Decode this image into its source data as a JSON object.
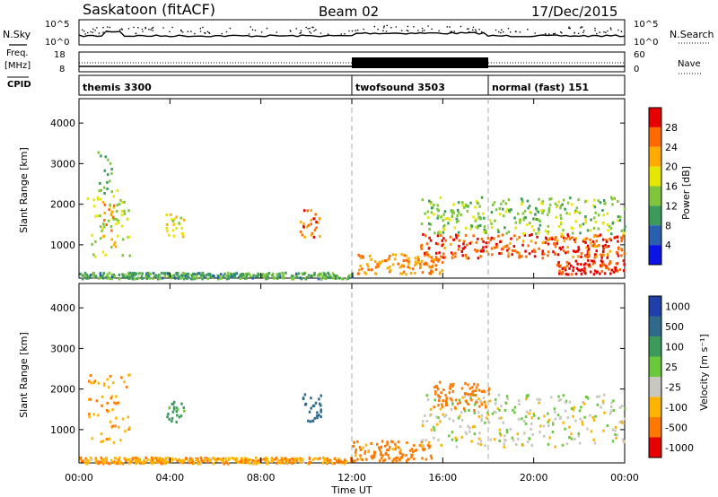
{
  "header": {
    "station": "Saskatoon (fitACF)",
    "beam": "Beam 02",
    "date": "17/Dec/2015"
  },
  "top_panels": {
    "nsky_label": "N.Sky",
    "nsearch_label": "N.Search",
    "freq_label_1": "Freq.",
    "freq_label_2": "[MHz]",
    "nave_label": "Nave",
    "cpid_label": "CPID",
    "left_ticks_noise": [
      "10^5",
      "10^0"
    ],
    "right_ticks_noise": [
      "10^5",
      "10^0"
    ],
    "left_ticks_freq": [
      "18",
      "8"
    ],
    "right_ticks_freq": [
      "60",
      "0"
    ]
  },
  "cpid_segments": [
    {
      "label": "themis 3300",
      "start": 0,
      "end": 12
    },
    {
      "label": "twofsound 3503",
      "start": 12,
      "end": 18
    },
    {
      "label": "normal (fast) 151",
      "start": 18,
      "end": 24
    }
  ],
  "power_colorbar": {
    "title": "Power [dB]",
    "ticks": [
      "28",
      "24",
      "20",
      "16",
      "12",
      "8",
      "4"
    ],
    "colors": [
      "#e60000",
      "#ff6a00",
      "#ffaa00",
      "#e6e600",
      "#7fc63c",
      "#3c9a5a",
      "#2a5fb0",
      "#0a14e6"
    ]
  },
  "velocity_colorbar": {
    "title": "Velocity [m s⁻¹]",
    "ticks": [
      "1000",
      "500",
      "100",
      "25",
      "-25",
      "-100",
      "-500",
      "-1000"
    ],
    "colors": [
      "#1f3faa",
      "#2f6a8a",
      "#3c9a5a",
      "#6ac83c",
      "#c8c8c0",
      "#ffb400",
      "#ff7800",
      "#e60000"
    ]
  },
  "chart_data": {
    "type": "heatmap",
    "xlabel": "Time UT",
    "ylabel": "Slant Range [km]",
    "x_ticks": [
      "00:00",
      "04:00",
      "08:00",
      "12:00",
      "16:00",
      "20:00",
      "00:00"
    ],
    "y_ticks": [
      "1000",
      "2000",
      "3000",
      "4000"
    ],
    "xlim_hours": [
      0,
      24
    ],
    "ylim_km": [
      180,
      4600
    ],
    "mode_change_hours": [
      12,
      18
    ],
    "power_regions": [
      {
        "t0": 0.3,
        "t1": 2.2,
        "r0": 700,
        "r1": 2400,
        "level": 14
      },
      {
        "t0": 1.0,
        "t1": 1.6,
        "r0": 900,
        "r1": 2100,
        "level": 22
      },
      {
        "t0": 0.8,
        "t1": 1.4,
        "r0": 2300,
        "r1": 3400,
        "level": 10
      },
      {
        "t0": 3.8,
        "t1": 4.6,
        "r0": 1200,
        "r1": 1800,
        "level": 16
      },
      {
        "t0": 9.7,
        "t1": 10.6,
        "r0": 1200,
        "r1": 1900,
        "level": 24
      },
      {
        "t0": 12.2,
        "t1": 16.0,
        "r0": 300,
        "r1": 800,
        "level": 22
      },
      {
        "t0": 15.0,
        "t1": 24.0,
        "r0": 700,
        "r1": 1300,
        "level": 25
      },
      {
        "t0": 15.0,
        "t1": 24.0,
        "r0": 1300,
        "r1": 2200,
        "level": 12
      },
      {
        "t0": 21.0,
        "t1": 24.0,
        "r0": 300,
        "r1": 650,
        "level": 27
      },
      {
        "t0": 0.0,
        "t1": 12.0,
        "r0": 190,
        "r1": 340,
        "level": 9
      }
    ],
    "velocity_regions": [
      {
        "t0": 0.3,
        "t1": 2.2,
        "r0": 700,
        "r1": 2400,
        "v": -100
      },
      {
        "t0": 3.8,
        "t1": 4.6,
        "r0": 1200,
        "r1": 1800,
        "v": 100
      },
      {
        "t0": 9.7,
        "t1": 10.6,
        "r0": 1200,
        "r1": 1900,
        "v": 500
      },
      {
        "t0": 12.0,
        "t1": 15.5,
        "r0": 250,
        "r1": 750,
        "v": -150
      },
      {
        "t0": 15.0,
        "t1": 24.0,
        "r0": 600,
        "r1": 1900,
        "v": 0
      },
      {
        "t0": 15.5,
        "t1": 18.0,
        "r0": 1500,
        "r1": 2200,
        "v": -300
      },
      {
        "t0": 0.0,
        "t1": 12.0,
        "r0": 190,
        "r1": 340,
        "v": -80
      }
    ]
  }
}
